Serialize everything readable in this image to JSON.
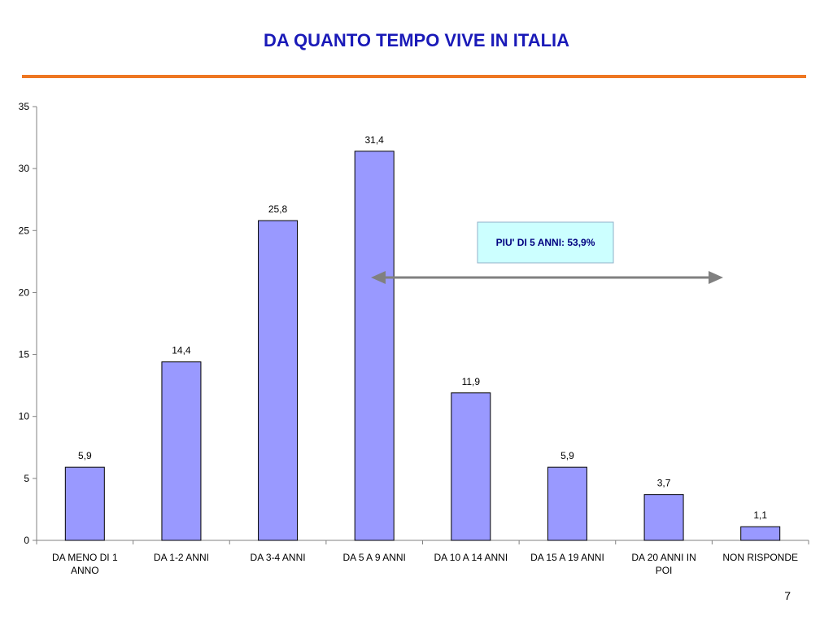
{
  "colors": {
    "title": "#1a1ab8",
    "rule": "#ee7722",
    "bar": "#9999ff",
    "bar_border": "#000000",
    "arrow": "#808080",
    "callout_bg": "#ccffff",
    "callout_border": "#8fb0c8",
    "callout_text": "#000080"
  },
  "slide": {
    "title": "DA QUANTO TEMPO VIVE IN ITALIA",
    "page_number": "7"
  },
  "chart_data": {
    "type": "bar",
    "title": "",
    "xlabel": "",
    "ylabel": "",
    "ylim": [
      0,
      35
    ],
    "yticks": [
      0,
      5,
      10,
      15,
      20,
      25,
      30,
      35
    ],
    "categories": [
      [
        "DA MENO DI 1",
        "ANNO"
      ],
      [
        "DA 1-2 ANNI"
      ],
      [
        "DA 3-4 ANNI"
      ],
      [
        "DA 5 A 9 ANNI"
      ],
      [
        "DA 10 A 14 ANNI"
      ],
      [
        "DA 15 A 19 ANNI"
      ],
      [
        "DA 20 ANNI IN",
        "POI"
      ],
      [
        "NON RISPONDE"
      ]
    ],
    "values": [
      5.9,
      14.4,
      25.8,
      31.4,
      11.9,
      5.9,
      3.7,
      1.1
    ],
    "value_labels": [
      "5,9",
      "14,4",
      "25,8",
      "31,4",
      "11,9",
      "5,9",
      "3,7",
      "1,1"
    ],
    "grid": false,
    "legend": "none",
    "annotation": {
      "text": "PIU' DI 5 ANNI: 53,9%",
      "arrow": "double-headed",
      "category_span": [
        "DA 5 A 9 ANNI",
        "NON RISPONDE"
      ]
    }
  }
}
